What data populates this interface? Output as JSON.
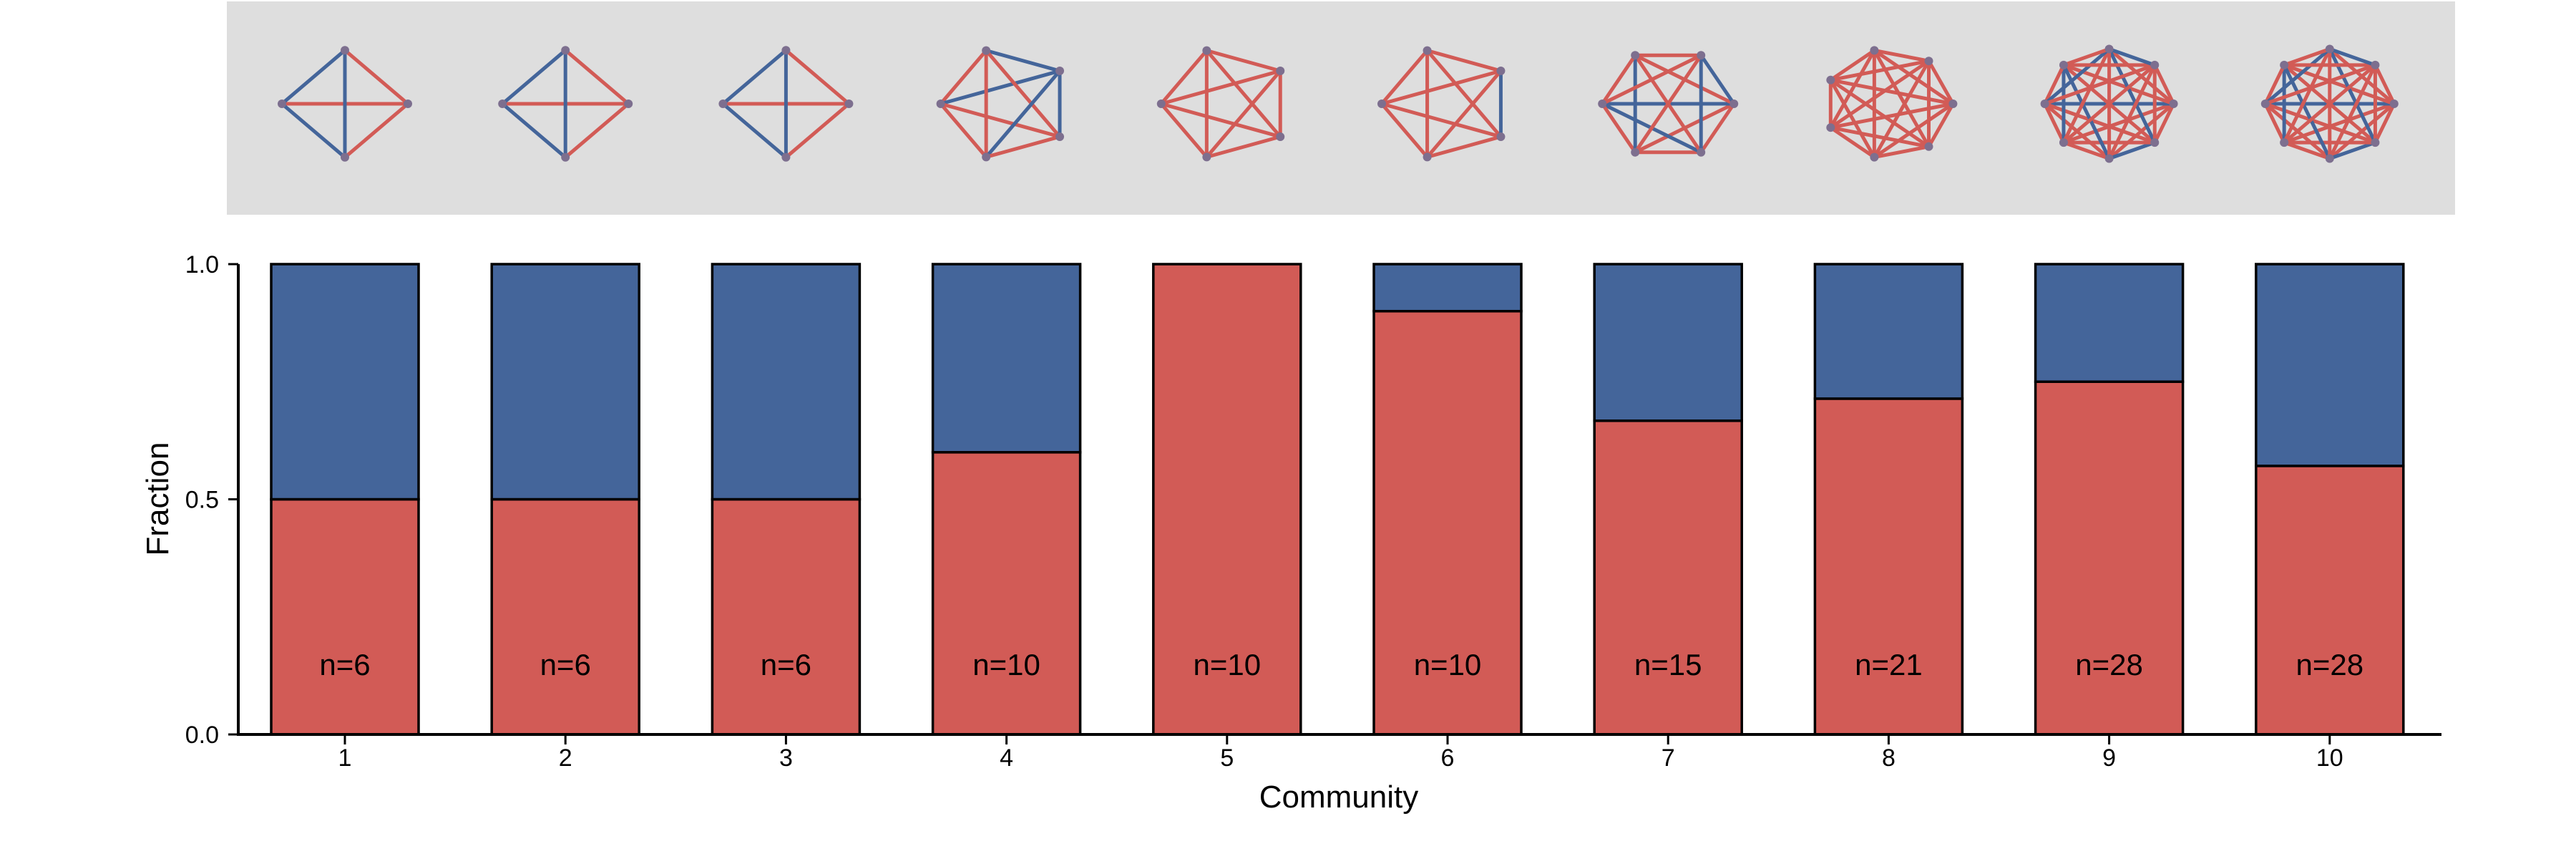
{
  "chart_data": {
    "type": "bar",
    "stacked": true,
    "categories": [
      "1",
      "2",
      "3",
      "4",
      "5",
      "6",
      "7",
      "8",
      "9",
      "10"
    ],
    "series": [
      {
        "color": "#d25b56",
        "values": [
          0.5,
          0.5,
          0.5,
          0.6,
          1.0,
          0.9,
          0.667,
          0.714,
          0.75,
          0.571
        ]
      },
      {
        "color": "#44659a",
        "values": [
          0.5,
          0.5,
          0.5,
          0.4,
          0.0,
          0.1,
          0.333,
          0.286,
          0.25,
          0.429
        ]
      }
    ],
    "bar_labels": [
      "n=6",
      "n=6",
      "n=6",
      "n=10",
      "n=10",
      "n=10",
      "n=15",
      "n=21",
      "n=28",
      "n=28"
    ],
    "community_sizes": [
      4,
      4,
      4,
      5,
      5,
      5,
      6,
      7,
      8,
      8
    ],
    "xlabel": "Community",
    "ylabel": "Fraction",
    "ylim": [
      0,
      1
    ],
    "yticks": [
      "0.0",
      "0.5",
      "1.0"
    ],
    "grid": false,
    "legend": "none",
    "inset_panel_color": "#dedede"
  }
}
